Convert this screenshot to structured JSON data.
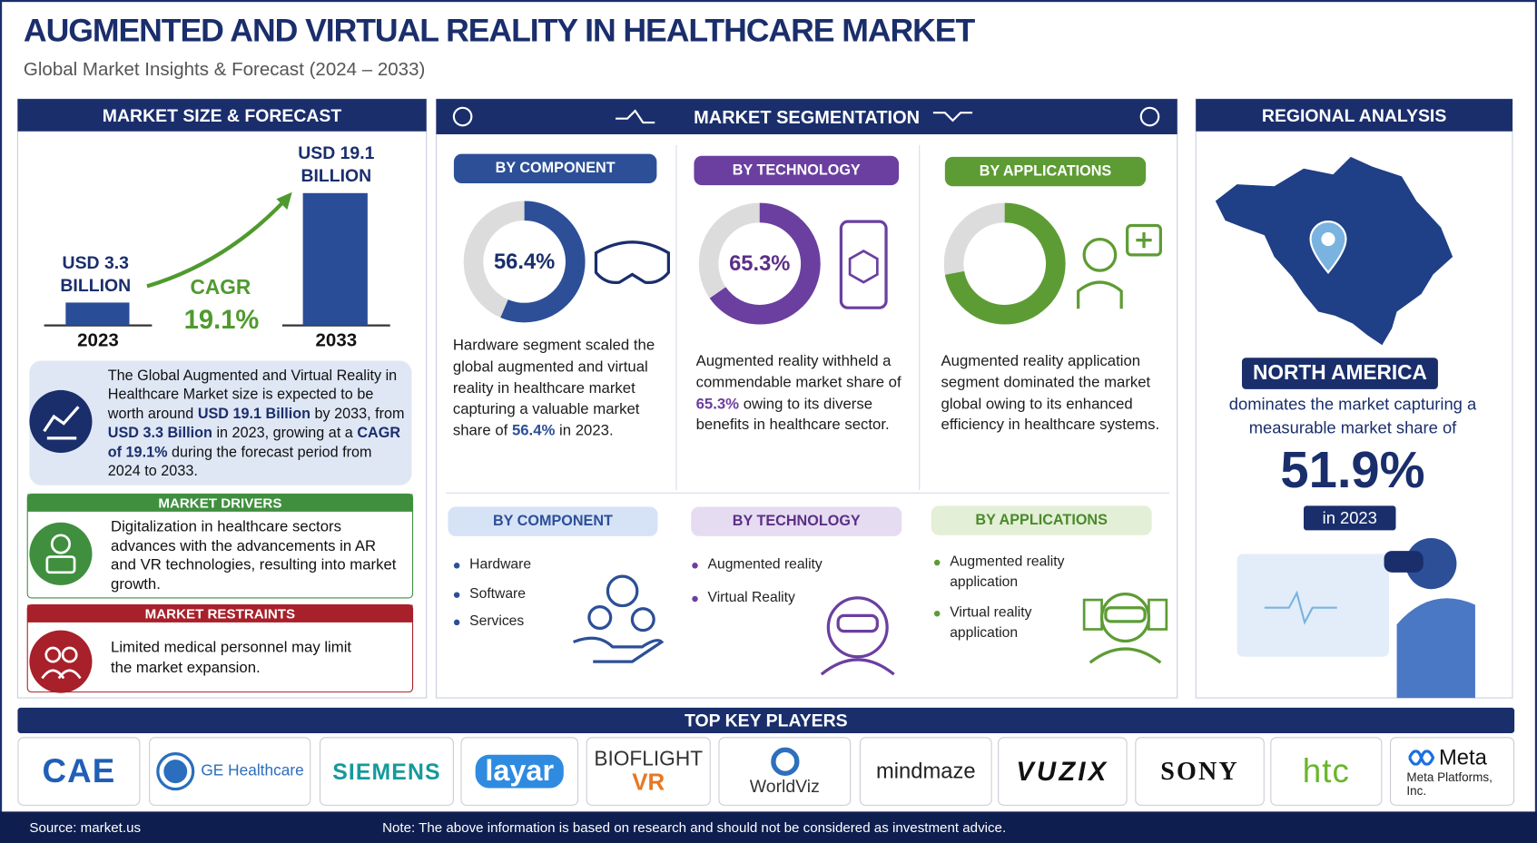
{
  "header": {
    "title": "AUGMENTED AND VIRTUAL REALITY IN HEALTHCARE MARKET",
    "subtitle": "Global Market Insights & Forecast (2024 – 2033)"
  },
  "market_size": {
    "heading": "MARKET SIZE & FORECAST",
    "bars": [
      {
        "label": "USD 3.3 BILLION",
        "value": 3.3,
        "year": "2023"
      },
      {
        "label": "USD 19.1 BILLION",
        "value": 19.1,
        "year": "2033"
      }
    ],
    "cagr_label": "CAGR",
    "cagr": "19.1%",
    "summary": [
      "The Global Augmented and Virtual Reality in Healthcare Market size is expected to be worth around ",
      "USD 19.1 Billion",
      " by 2033, from ",
      "USD 3.3 Billion",
      " in 2023, growing at a ",
      "CAGR of 19.1%",
      " during the forecast period from 2024 to 2033."
    ]
  },
  "drivers": {
    "heading": "MARKET DRIVERS",
    "text": "Digitalization in healthcare sectors advances with the advancements in AR and VR technologies, resulting into market growth."
  },
  "restraints": {
    "heading": "MARKET RESTRAINTS",
    "text": "Limited medical personnel may limit the market expansion."
  },
  "segmentation": {
    "heading": "MARKET SEGMENTATION",
    "cards": [
      {
        "heading": "BY COMPONENT",
        "share": 56.4,
        "share_label": "56.4%",
        "text": [
          "Hardware segment scaled the global augmented and virtual reality in healthcare market capturing a valuable market share of ",
          "56.4%",
          " in 2023."
        ]
      },
      {
        "heading": "BY TECHNOLOGY",
        "share": 65.3,
        "share_label": "65.3%",
        "text": [
          "Augmented reality withheld a commendable market share of ",
          "65.3%",
          " owing to its diverse benefits in healthcare sector."
        ]
      },
      {
        "heading": "BY APPLICATIONS",
        "share": 72,
        "text": [
          "Augmented reality application segment dominated the market global owing to its enhanced efficiency in healthcare systems."
        ]
      }
    ],
    "lists": [
      {
        "heading": "BY COMPONENT",
        "items": [
          "Hardware",
          "Software",
          "Services"
        ]
      },
      {
        "heading": "BY TECHNOLOGY",
        "items": [
          "Augmented reality",
          "Virtual Reality"
        ]
      },
      {
        "heading": "BY APPLICATIONS",
        "items": [
          "Augmented reality application",
          "Virtual reality application"
        ]
      }
    ]
  },
  "regional": {
    "heading": "REGIONAL ANALYSIS",
    "region": "NORTH AMERICA",
    "text": "dominates the market capturing a measurable market share of",
    "share_label": "51.9%",
    "year": "in 2023"
  },
  "key_players": {
    "heading": "TOP KEY PLAYERS",
    "players": [
      {
        "name": "CAE"
      },
      {
        "name": "GE Healthcare"
      },
      {
        "name": "SIEMENS"
      },
      {
        "name": "layar"
      },
      {
        "name": "BIOFLIGHT",
        "sub": "VR"
      },
      {
        "name": "WorldViz"
      },
      {
        "name": "mindmaze"
      },
      {
        "name": "VUZIX"
      },
      {
        "name": "SONY"
      },
      {
        "name": "htc"
      },
      {
        "name": "Meta",
        "sub": "Meta Platforms, Inc."
      }
    ]
  },
  "footer": {
    "source": "Source: market.us",
    "note": "Note: The above information is based on research and should not be considered as investment advice."
  }
}
